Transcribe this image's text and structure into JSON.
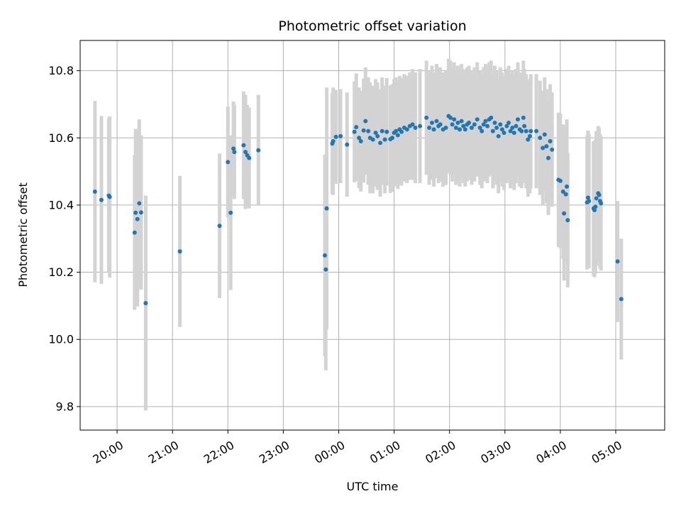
{
  "chart_data": {
    "type": "scatter",
    "title": "Photometric offset variation",
    "xlabel": "UTC time",
    "ylabel": "Photometric offset",
    "x_axis": "time of day (HH:MM), spanning midnight",
    "xlim": [
      "19:20",
      "05:53"
    ],
    "ylim": [
      9.73,
      10.89
    ],
    "x_ticks": [
      "20:00",
      "21:00",
      "22:00",
      "23:00",
      "00:00",
      "01:00",
      "02:00",
      "03:00",
      "04:00",
      "05:00"
    ],
    "y_ticks": [
      9.8,
      10.0,
      10.2,
      10.4,
      10.6,
      10.8
    ],
    "grid": true,
    "colors": {
      "points": "#1f77b4",
      "errorbars": "#d3d3d3",
      "grid": "#b0b0b0"
    },
    "series": [
      {
        "points": [
          {
            "x": "19:36",
            "y": 10.44,
            "err": 0.27
          },
          {
            "x": "19:43",
            "y": 10.415,
            "err": 0.25
          },
          {
            "x": "19:51",
            "y": 10.428,
            "err": 0.23
          },
          {
            "x": "19:52",
            "y": 10.424,
            "err": 0.24
          },
          {
            "x": "20:19",
            "y": 10.318,
            "err": 0.23
          },
          {
            "x": "20:20",
            "y": 10.377,
            "err": 0.25
          },
          {
            "x": "20:22",
            "y": 10.358,
            "err": 0.26
          },
          {
            "x": "20:24",
            "y": 10.405,
            "err": 0.25
          },
          {
            "x": "20:26",
            "y": 10.378,
            "err": 0.23
          },
          {
            "x": "20:31",
            "y": 10.108,
            "err": 0.32
          },
          {
            "x": "21:08",
            "y": 10.262,
            "err": 0.225
          },
          {
            "x": "21:51",
            "y": 10.338,
            "err": 0.215
          },
          {
            "x": "22:00",
            "y": 10.528,
            "err": 0.165
          },
          {
            "x": "22:03",
            "y": 10.377,
            "err": 0.23
          },
          {
            "x": "22:06",
            "y": 10.568,
            "err": 0.14
          },
          {
            "x": "22:07",
            "y": 10.558,
            "err": 0.14
          },
          {
            "x": "22:17",
            "y": 10.578,
            "err": 0.16
          },
          {
            "x": "22:19",
            "y": 10.558,
            "err": 0.17
          },
          {
            "x": "22:21",
            "y": 10.548,
            "err": 0.15
          },
          {
            "x": "22:23",
            "y": 10.54,
            "err": 0.15
          },
          {
            "x": "22:33",
            "y": 10.563,
            "err": 0.165
          },
          {
            "x": "23:45",
            "y": 10.25,
            "err": 0.3
          },
          {
            "x": "23:46",
            "y": 10.208,
            "err": 0.3
          },
          {
            "x": "23:47",
            "y": 10.39,
            "err": 0.36
          },
          {
            "x": "23:53",
            "y": 10.583,
            "err": 0.15
          },
          {
            "x": "23:54",
            "y": 10.59,
            "err": 0.16
          },
          {
            "x": "23:57",
            "y": 10.603,
            "err": 0.14
          },
          {
            "x": "00:02",
            "y": 10.605,
            "err": 0.14
          },
          {
            "x": "00:09",
            "y": 10.58,
            "err": 0.155
          },
          {
            "x": "00:17",
            "y": 10.618,
            "err": 0.15
          },
          {
            "x": "00:19",
            "y": 10.632,
            "err": 0.16
          },
          {
            "x": "00:22",
            "y": 10.6,
            "err": 0.15
          },
          {
            "x": "00:24",
            "y": 10.59,
            "err": 0.15
          },
          {
            "x": "00:27",
            "y": 10.622,
            "err": 0.155
          },
          {
            "x": "00:29",
            "y": 10.65,
            "err": 0.16
          },
          {
            "x": "00:32",
            "y": 10.62,
            "err": 0.16
          },
          {
            "x": "00:34",
            "y": 10.6,
            "err": 0.165
          },
          {
            "x": "00:37",
            "y": 10.595,
            "err": 0.16
          },
          {
            "x": "00:40",
            "y": 10.615,
            "err": 0.16
          },
          {
            "x": "00:42",
            "y": 10.605,
            "err": 0.16
          },
          {
            "x": "00:45",
            "y": 10.585,
            "err": 0.16
          },
          {
            "x": "00:47",
            "y": 10.62,
            "err": 0.16
          },
          {
            "x": "00:50",
            "y": 10.595,
            "err": 0.16
          },
          {
            "x": "00:52",
            "y": 10.618,
            "err": 0.16
          },
          {
            "x": "00:56",
            "y": 10.596,
            "err": 0.16
          },
          {
            "x": "00:58",
            "y": 10.6,
            "err": 0.16
          },
          {
            "x": "01:00",
            "y": 10.615,
            "err": 0.16
          },
          {
            "x": "01:02",
            "y": 10.62,
            "err": 0.16
          },
          {
            "x": "01:04",
            "y": 10.608,
            "err": 0.16
          },
          {
            "x": "01:06",
            "y": 10.625,
            "err": 0.16
          },
          {
            "x": "01:08",
            "y": 10.618,
            "err": 0.16
          },
          {
            "x": "01:11",
            "y": 10.63,
            "err": 0.16
          },
          {
            "x": "01:14",
            "y": 10.625,
            "err": 0.16
          },
          {
            "x": "01:17",
            "y": 10.635,
            "err": 0.16
          },
          {
            "x": "01:20",
            "y": 10.64,
            "err": 0.165
          },
          {
            "x": "01:23",
            "y": 10.63,
            "err": 0.165
          },
          {
            "x": "01:28",
            "y": 10.635,
            "err": 0.17
          },
          {
            "x": "01:35",
            "y": 10.66,
            "err": 0.17
          },
          {
            "x": "01:38",
            "y": 10.63,
            "err": 0.17
          },
          {
            "x": "01:41",
            "y": 10.645,
            "err": 0.17
          },
          {
            "x": "01:43",
            "y": 10.625,
            "err": 0.17
          },
          {
            "x": "01:46",
            "y": 10.65,
            "err": 0.17
          },
          {
            "x": "01:48",
            "y": 10.635,
            "err": 0.17
          },
          {
            "x": "01:50",
            "y": 10.64,
            "err": 0.17
          },
          {
            "x": "01:53",
            "y": 10.625,
            "err": 0.17
          },
          {
            "x": "01:56",
            "y": 10.63,
            "err": 0.17
          },
          {
            "x": "01:59",
            "y": 10.665,
            "err": 0.17
          },
          {
            "x": "02:01",
            "y": 10.66,
            "err": 0.17
          },
          {
            "x": "02:03",
            "y": 10.64,
            "err": 0.17
          },
          {
            "x": "02:05",
            "y": 10.655,
            "err": 0.17
          },
          {
            "x": "02:07",
            "y": 10.63,
            "err": 0.17
          },
          {
            "x": "02:09",
            "y": 10.645,
            "err": 0.17
          },
          {
            "x": "02:11",
            "y": 10.625,
            "err": 0.17
          },
          {
            "x": "02:13",
            "y": 10.65,
            "err": 0.17
          },
          {
            "x": "02:15",
            "y": 10.635,
            "err": 0.17
          },
          {
            "x": "02:17",
            "y": 10.625,
            "err": 0.17
          },
          {
            "x": "02:19",
            "y": 10.64,
            "err": 0.17
          },
          {
            "x": "02:21",
            "y": 10.645,
            "err": 0.17
          },
          {
            "x": "02:24",
            "y": 10.63,
            "err": 0.17
          },
          {
            "x": "02:27",
            "y": 10.64,
            "err": 0.17
          },
          {
            "x": "02:30",
            "y": 10.655,
            "err": 0.17
          },
          {
            "x": "02:33",
            "y": 10.63,
            "err": 0.17
          },
          {
            "x": "02:35",
            "y": 10.62,
            "err": 0.17
          },
          {
            "x": "02:37",
            "y": 10.64,
            "err": 0.17
          },
          {
            "x": "02:39",
            "y": 10.65,
            "err": 0.17
          },
          {
            "x": "02:41",
            "y": 10.635,
            "err": 0.17
          },
          {
            "x": "02:43",
            "y": 10.655,
            "err": 0.17
          },
          {
            "x": "02:45",
            "y": 10.66,
            "err": 0.17
          },
          {
            "x": "02:47",
            "y": 10.62,
            "err": 0.17
          },
          {
            "x": "02:49",
            "y": 10.645,
            "err": 0.17
          },
          {
            "x": "02:51",
            "y": 10.63,
            "err": 0.17
          },
          {
            "x": "02:53",
            "y": 10.605,
            "err": 0.17
          },
          {
            "x": "02:55",
            "y": 10.64,
            "err": 0.17
          },
          {
            "x": "02:57",
            "y": 10.625,
            "err": 0.17
          },
          {
            "x": "02:59",
            "y": 10.615,
            "err": 0.17
          },
          {
            "x": "03:02",
            "y": 10.635,
            "err": 0.17
          },
          {
            "x": "03:04",
            "y": 10.645,
            "err": 0.17
          },
          {
            "x": "03:06",
            "y": 10.62,
            "err": 0.17
          },
          {
            "x": "03:08",
            "y": 10.63,
            "err": 0.17
          },
          {
            "x": "03:10",
            "y": 10.615,
            "err": 0.17
          },
          {
            "x": "03:12",
            "y": 10.635,
            "err": 0.17
          },
          {
            "x": "03:14",
            "y": 10.655,
            "err": 0.17
          },
          {
            "x": "03:16",
            "y": 10.625,
            "err": 0.17
          },
          {
            "x": "03:18",
            "y": 10.62,
            "err": 0.17
          },
          {
            "x": "03:20",
            "y": 10.66,
            "err": 0.17
          },
          {
            "x": "03:21",
            "y": 10.635,
            "err": 0.17
          },
          {
            "x": "03:23",
            "y": 10.62,
            "err": 0.17
          },
          {
            "x": "03:25",
            "y": 10.595,
            "err": 0.17
          },
          {
            "x": "03:27",
            "y": 10.605,
            "err": 0.17
          },
          {
            "x": "03:28",
            "y": 10.62,
            "err": 0.17
          },
          {
            "x": "03:34",
            "y": 10.62,
            "err": 0.17
          },
          {
            "x": "03:38",
            "y": 10.6,
            "err": 0.17
          },
          {
            "x": "03:41",
            "y": 10.57,
            "err": 0.17
          },
          {
            "x": "03:43",
            "y": 10.61,
            "err": 0.17
          },
          {
            "x": "03:45",
            "y": 10.575,
            "err": 0.17
          },
          {
            "x": "03:47",
            "y": 10.54,
            "err": 0.17
          },
          {
            "x": "03:49",
            "y": 10.59,
            "err": 0.17
          },
          {
            "x": "03:51",
            "y": 10.565,
            "err": 0.17
          },
          {
            "x": "03:58",
            "y": 10.475,
            "err": 0.2
          },
          {
            "x": "04:00",
            "y": 10.472,
            "err": 0.2
          },
          {
            "x": "04:03",
            "y": 10.44,
            "err": 0.2
          },
          {
            "x": "04:04",
            "y": 10.375,
            "err": 0.2
          },
          {
            "x": "04:06",
            "y": 10.432,
            "err": 0.2
          },
          {
            "x": "04:07",
            "y": 10.455,
            "err": 0.2
          },
          {
            "x": "04:08",
            "y": 10.355,
            "err": 0.2
          },
          {
            "x": "04:29",
            "y": 10.408,
            "err": 0.2
          },
          {
            "x": "04:30",
            "y": 10.422,
            "err": 0.2
          },
          {
            "x": "04:31",
            "y": 10.412,
            "err": 0.2
          },
          {
            "x": "04:36",
            "y": 10.39,
            "err": 0.2
          },
          {
            "x": "04:37",
            "y": 10.385,
            "err": 0.2
          },
          {
            "x": "04:38",
            "y": 10.395,
            "err": 0.2
          },
          {
            "x": "04:39",
            "y": 10.42,
            "err": 0.2
          },
          {
            "x": "04:41",
            "y": 10.435,
            "err": 0.2
          },
          {
            "x": "04:42",
            "y": 10.43,
            "err": 0.2
          },
          {
            "x": "04:43",
            "y": 10.412,
            "err": 0.2
          },
          {
            "x": "04:44",
            "y": 10.405,
            "err": 0.2
          },
          {
            "x": "05:02",
            "y": 10.232,
            "err": 0.18
          },
          {
            "x": "05:06",
            "y": 10.12,
            "err": 0.18
          }
        ]
      }
    ]
  }
}
